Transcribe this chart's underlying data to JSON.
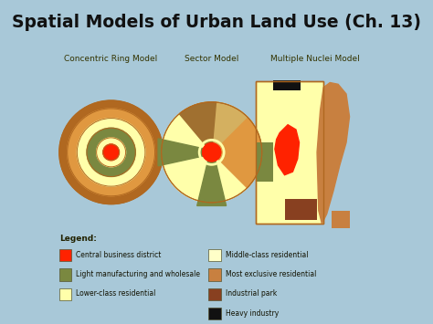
{
  "title": "Spatial Models of Urban Land Use (Ch. 13)",
  "title_bg": "#e8f560",
  "panel_bg": "#c8e8a0",
  "outer_bg": "#a8c8d8",
  "colors": {
    "cbd": "#ff2200",
    "light_manuf": "#7a8840",
    "lower_class": "#ffffaa",
    "middle_class": "#ffffc8",
    "most_exclusive": "#c88040",
    "industrial_park": "#884020",
    "heavy_industry": "#111111",
    "ring_brown": "#b06820",
    "ring_orange": "#e09840",
    "ring_tan": "#d4b060",
    "sector_tan": "#d4b060",
    "sector_brown": "#a07030",
    "outline_brown": "#c07820"
  },
  "model_labels": [
    "Concentric Ring Model",
    "Sector Model",
    "Multiple Nuclei Model"
  ],
  "legend_left": [
    {
      "label": "Central business district",
      "color": "#ff2200"
    },
    {
      "label": "Light manufacturing and wholesale",
      "color": "#7a8840"
    },
    {
      "label": "Lower-class residential",
      "color": "#ffffaa"
    }
  ],
  "legend_right": [
    {
      "label": "Middle-class residential",
      "color": "#ffffc8"
    },
    {
      "label": "Most exclusive residential",
      "color": "#c88040"
    },
    {
      "label": "Industrial park",
      "color": "#884020"
    },
    {
      "label": "Heavy industry",
      "color": "#111111"
    }
  ]
}
